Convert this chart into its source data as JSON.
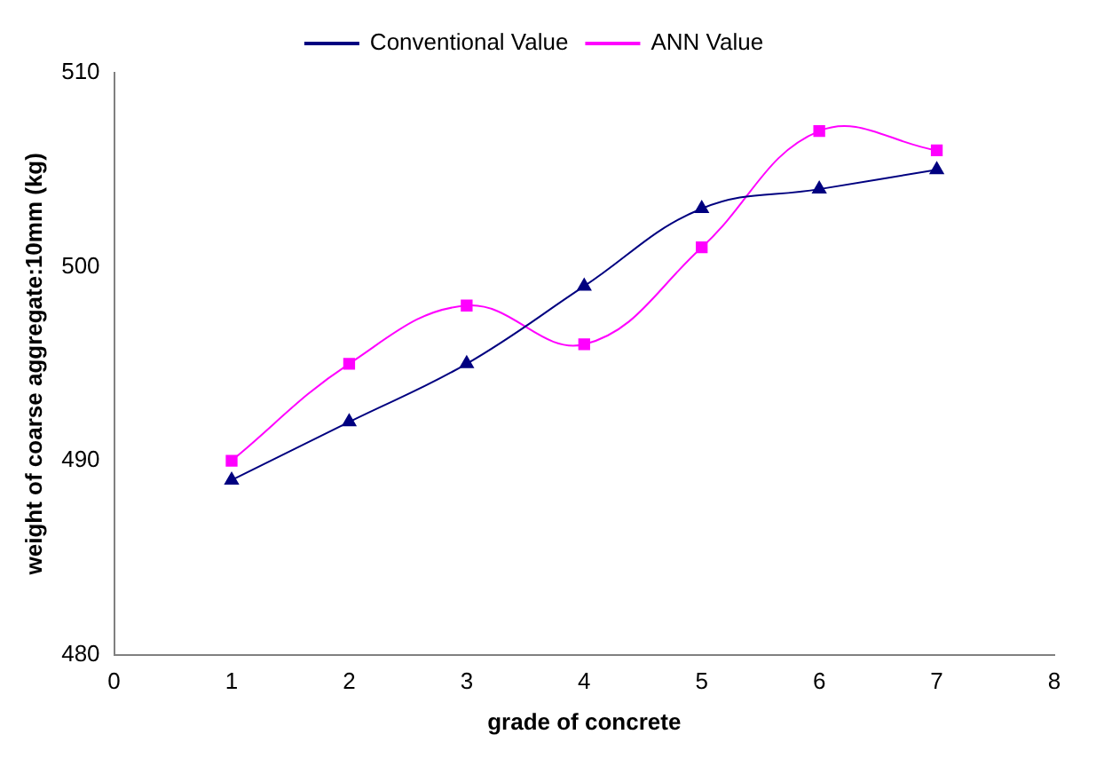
{
  "chart_data": {
    "type": "line",
    "xlabel": "grade of concrete",
    "ylabel": "weight of coarse aggregate:10mm (kg)",
    "x": [
      1,
      2,
      3,
      4,
      5,
      6,
      7
    ],
    "series": [
      {
        "name": "Conventional Value",
        "color": "#000080",
        "marker": "triangle",
        "values": [
          489,
          492,
          495,
          499,
          503,
          504,
          505
        ]
      },
      {
        "name": "ANN Value",
        "color": "#ff00ff",
        "marker": "square",
        "values": [
          490,
          495,
          498,
          496,
          501,
          507,
          506
        ]
      }
    ],
    "xlim": [
      0,
      8
    ],
    "xticks": [
      0,
      1,
      2,
      3,
      4,
      5,
      6,
      7,
      8
    ],
    "ylim": [
      480,
      510
    ],
    "yticks": [
      480,
      490,
      500,
      510
    ],
    "grid": false,
    "legend": "top"
  }
}
